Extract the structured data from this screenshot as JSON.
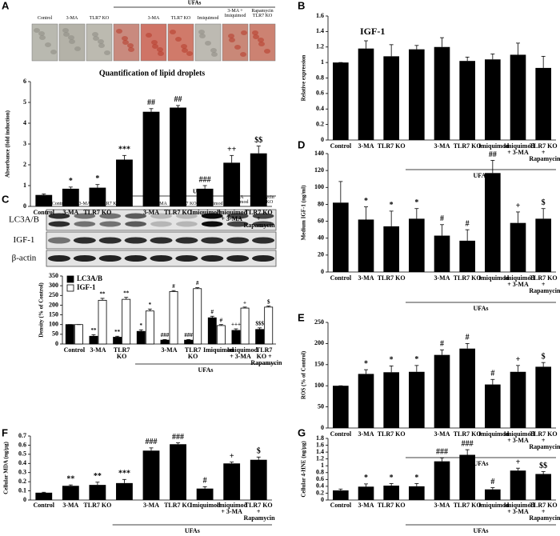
{
  "chart_data": [
    {
      "type": "bar",
      "panel": "A",
      "title": "Quantification of lipid droplets",
      "ylabel": "Absorbance (fold induction)",
      "categories": [
        "Control",
        "3-MA",
        "TLR7 KO",
        null,
        "3-MA",
        "TLR7 KO",
        "Imiquimod",
        "Imiquimod + 3-MA",
        "TLR7 KO + Rapamycin"
      ],
      "group_label": "UFAs",
      "image_labels": [
        "Control",
        "3-MA",
        "TLR7 KO",
        null,
        "3-MA",
        "TLR7 KO",
        "Imiquimod",
        "3-MA + Imiquimod",
        "Rapamycin TLR7 KO"
      ],
      "image_group_label": "UFAs",
      "values": [
        0.55,
        0.85,
        0.9,
        2.25,
        4.55,
        4.75,
        0.85,
        2.1,
        2.55
      ],
      "errors": [
        0.05,
        0.08,
        0.15,
        0.2,
        0.15,
        0.1,
        0.15,
        0.35,
        0.35
      ],
      "markers": [
        null,
        "*",
        "*",
        "***",
        "##",
        "##",
        "###",
        "++",
        "$$"
      ],
      "color": "#000000",
      "ylim": [
        0,
        6
      ],
      "yticks": [
        0,
        1,
        2,
        3,
        4,
        5,
        6
      ]
    },
    {
      "type": "bar",
      "panel": "B",
      "title": "IGF-1",
      "ylabel": "Relative expression",
      "categories": [
        "Control",
        "3-MA",
        "TLR7 KO",
        null,
        "3-MA",
        "TLR7 KO",
        "Imiquimod",
        "Imiquimod + 3-MA",
        "TLR7 KO + Rapamycin"
      ],
      "group_label": "UFAs",
      "values": [
        1.0,
        1.18,
        1.08,
        1.17,
        1.2,
        1.02,
        1.04,
        1.1,
        0.93
      ],
      "errors": [
        0,
        0.1,
        0.15,
        0.05,
        0.12,
        0.05,
        0.07,
        0.15,
        0.15
      ],
      "color": "#000000",
      "ylim": [
        0,
        1.6
      ],
      "yticks": [
        0,
        0.2,
        0.4,
        0.6,
        0.8,
        1,
        1.2,
        1.4,
        1.6
      ]
    },
    {
      "type": "grouped_bar",
      "panel": "C",
      "ylabel": "Density (% of Control)",
      "categories": [
        "Control",
        "3-MA",
        "TLR7 KO",
        null,
        "3-MA",
        "TLR7 KO",
        "Imiquimod",
        "Imiquimod + 3-MA",
        "TLR7 KO + Rapamycin"
      ],
      "group_label": "UFAs",
      "blot_labels": [
        "LC3A/B",
        "IGF-1",
        "β-actin"
      ],
      "blot_columns": [
        "Control",
        "3-MA",
        "TLR7 KO",
        null,
        "3-MA",
        "TLR7 KO",
        "Imiquimod",
        "3-MA Imiquimod",
        "Rapamycin TLR7 KO"
      ],
      "blot_group_label": "UFAs",
      "series": [
        {
          "name": "LC3A/B",
          "color": "#000000",
          "values": [
            100,
            40,
            35,
            65,
            20,
            20,
            135,
            70,
            75
          ],
          "errors": [
            0,
            8,
            5,
            8,
            3,
            3,
            8,
            8,
            8
          ],
          "markers": [
            null,
            "**",
            "**",
            "*",
            "###",
            "###",
            "#",
            "+++",
            "$$$"
          ]
        },
        {
          "name": "IGF-1",
          "color": "#ffffff",
          "values": [
            100,
            225,
            230,
            170,
            270,
            285,
            95,
            185,
            190
          ],
          "errors": [
            0,
            10,
            10,
            10,
            5,
            5,
            5,
            5,
            5
          ],
          "markers": [
            null,
            "**",
            "**",
            "*",
            "#",
            "#",
            "#",
            "+",
            "$"
          ]
        }
      ],
      "ylim": [
        0,
        350
      ],
      "yticks": [
        0,
        50,
        100,
        150,
        200,
        250,
        300,
        350
      ]
    },
    {
      "type": "bar",
      "panel": "D",
      "ylabel": "Medium IGF-1 (ng/ml)",
      "categories": [
        "Control",
        "3-MA",
        "TLR7 KO",
        null,
        "3-MA",
        "TLR7 KO",
        "Imiquimod",
        "Imiquimod + 3-MA",
        "TLR7 KO + Rapamycin"
      ],
      "group_label": "UFAs",
      "values": [
        82,
        62,
        54,
        63,
        43,
        37,
        117,
        58,
        63
      ],
      "errors": [
        25,
        15,
        18,
        12,
        13,
        13,
        15,
        13,
        12
      ],
      "markers": [
        null,
        "*",
        "*",
        "*",
        "#",
        "#",
        "##",
        "+",
        "$"
      ],
      "color": "#000000",
      "ylim": [
        0,
        140
      ],
      "yticks": [
        0,
        20,
        40,
        60,
        80,
        100,
        120,
        140
      ]
    },
    {
      "type": "bar",
      "panel": "E",
      "ylabel": "ROS (% of Control)",
      "categories": [
        "Control",
        "3-MA",
        "TLR7 KO",
        null,
        "3-MA",
        "TLR7 KO",
        "Imiquimod",
        "Imiquimod + 3-MA",
        "TLR7 KO + Rapamycin"
      ],
      "group_label": "UFAs",
      "values": [
        100,
        128,
        132,
        133,
        173,
        188,
        103,
        133,
        145
      ],
      "errors": [
        0,
        10,
        15,
        15,
        12,
        12,
        12,
        15,
        10
      ],
      "markers": [
        null,
        "*",
        "*",
        "*",
        "#",
        "#",
        "#",
        "+",
        "$"
      ],
      "color": "#000000",
      "ylim": [
        0,
        250
      ],
      "yticks": [
        0,
        50,
        100,
        150,
        200,
        250
      ]
    },
    {
      "type": "bar",
      "panel": "F",
      "ylabel": "Cellular MDA (ng/μg)",
      "categories": [
        "Control",
        "3-MA",
        "TLR7 KO",
        null,
        "3-MA",
        "TLR7 KO",
        "Imiquimod",
        "Imiquimod + 3-MA",
        "TLR7 KO + Rapamycin"
      ],
      "group_label": "UFAs",
      "values": [
        0.08,
        0.155,
        0.165,
        0.185,
        0.54,
        0.61,
        0.125,
        0.4,
        0.44
      ],
      "errors": [
        0.005,
        0.01,
        0.03,
        0.04,
        0.03,
        0.015,
        0.02,
        0.015,
        0.03
      ],
      "markers": [
        null,
        "**",
        "**",
        "***",
        "###",
        "###",
        "#",
        "+",
        "$"
      ],
      "color": "#000000",
      "ylim": [
        0,
        0.7
      ],
      "yticks": [
        0,
        0.1,
        0.2,
        0.3,
        0.4,
        0.5,
        0.6,
        0.7
      ]
    },
    {
      "type": "bar",
      "panel": "G",
      "ylabel": "Cellular 4-HNE (ng/μg)",
      "categories": [
        "Control",
        "3-MA",
        "TLR7 KO",
        null,
        "3-MA",
        "TLR7 KO",
        "Imiquimod",
        "Imiquimod + 3-MA",
        "TLR7 KO + Rapamycin"
      ],
      "group_label": "UFAs",
      "values": [
        0.28,
        0.39,
        0.42,
        0.4,
        1.13,
        1.32,
        0.31,
        0.86,
        0.76
      ],
      "errors": [
        0.04,
        0.08,
        0.06,
        0.08,
        0.1,
        0.15,
        0.05,
        0.07,
        0.07
      ],
      "markers": [
        null,
        "*",
        "*",
        "*",
        "###",
        "###",
        "#",
        "+",
        "$$"
      ],
      "color": "#000000",
      "ylim": [
        0,
        1.8
      ],
      "yticks": [
        0,
        0.2,
        0.4,
        0.6,
        0.8,
        1,
        1.2,
        1.4,
        1.6,
        1.8
      ]
    }
  ]
}
